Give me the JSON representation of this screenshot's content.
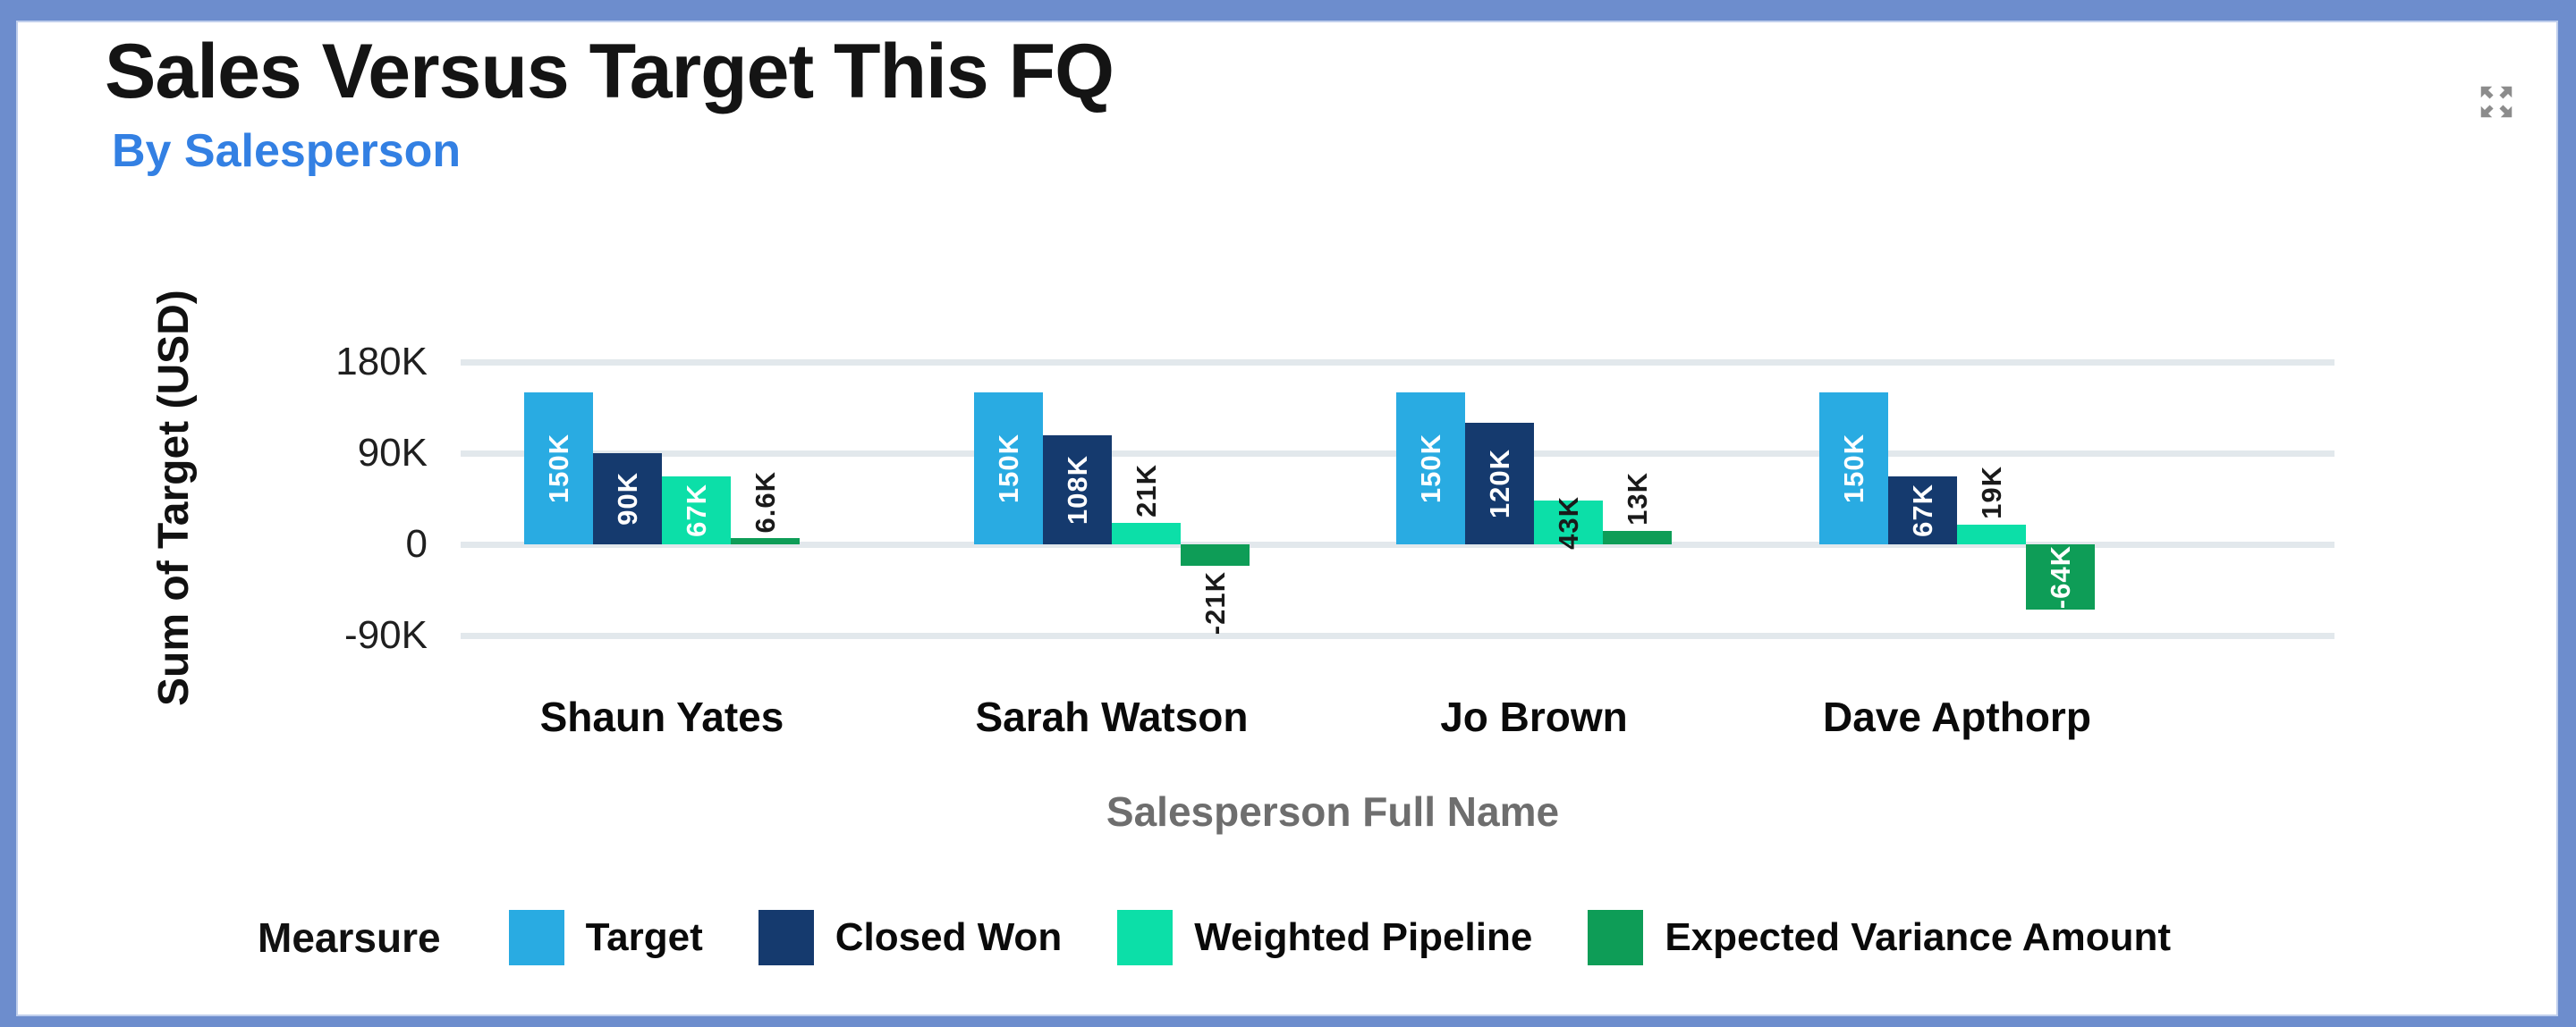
{
  "window": {
    "frame_color": "#6D8DCD",
    "card_background": "#FFFFFF"
  },
  "header": {
    "title": "Sales Versus Target This FQ",
    "subtitle": "By Salesperson",
    "subtitle_color": "#3380E3",
    "expand_icon": "expand-arrows-icon",
    "expand_icon_color": "#8C8C8C"
  },
  "chart_data": {
    "type": "bar",
    "title": "Sales Versus Target This FQ",
    "subtitle": "By Salesperson",
    "xlabel": "Salesperson Full Name",
    "ylabel": "Sum of Target (USD)",
    "legend_title": "Mearsure",
    "legend_position": "bottom",
    "grid": true,
    "gridline_color": "#E2E8EC",
    "ylim": [
      -120000,
      200000
    ],
    "yticks": [
      {
        "value": 180000,
        "label": "180K"
      },
      {
        "value": 90000,
        "label": "90K"
      },
      {
        "value": 0,
        "label": "0"
      },
      {
        "value": -90000,
        "label": "-90K"
      }
    ],
    "categories": [
      "Shaun Yates",
      "Sarah Watson",
      "Jo Brown",
      "Dave Apthorp"
    ],
    "series": [
      {
        "name": "Target",
        "color": "#29ABE2",
        "values": [
          150000,
          150000,
          150000,
          150000
        ],
        "labels": [
          "150K",
          "150K",
          "150K",
          "150K"
        ],
        "label_styles": [
          "inside-white",
          "inside-white",
          "inside-white",
          "inside-white"
        ]
      },
      {
        "name": "Closed Won",
        "color": "#153A6E",
        "values": [
          90000,
          108000,
          120000,
          67000
        ],
        "labels": [
          "90K",
          "108K",
          "120K",
          "67K"
        ],
        "label_styles": [
          "inside-white",
          "inside-white",
          "inside-white",
          "inside-white"
        ]
      },
      {
        "name": "Weighted Pipeline",
        "color": "#0CDFA8",
        "values": [
          67000,
          21000,
          43000,
          19000
        ],
        "labels": [
          "67K",
          "21K",
          "43K",
          "19K"
        ],
        "label_styles": [
          "inside-white",
          "above",
          "inside-black",
          "above"
        ]
      },
      {
        "name": "Expected Variance Amount",
        "color": "#0E9D57",
        "values": [
          6600,
          -21000,
          13000,
          -64000
        ],
        "labels": [
          "6.6K",
          "-21K",
          "13K",
          "-64K"
        ],
        "label_styles": [
          "above",
          "below",
          "above",
          "inside-white"
        ]
      }
    ]
  }
}
